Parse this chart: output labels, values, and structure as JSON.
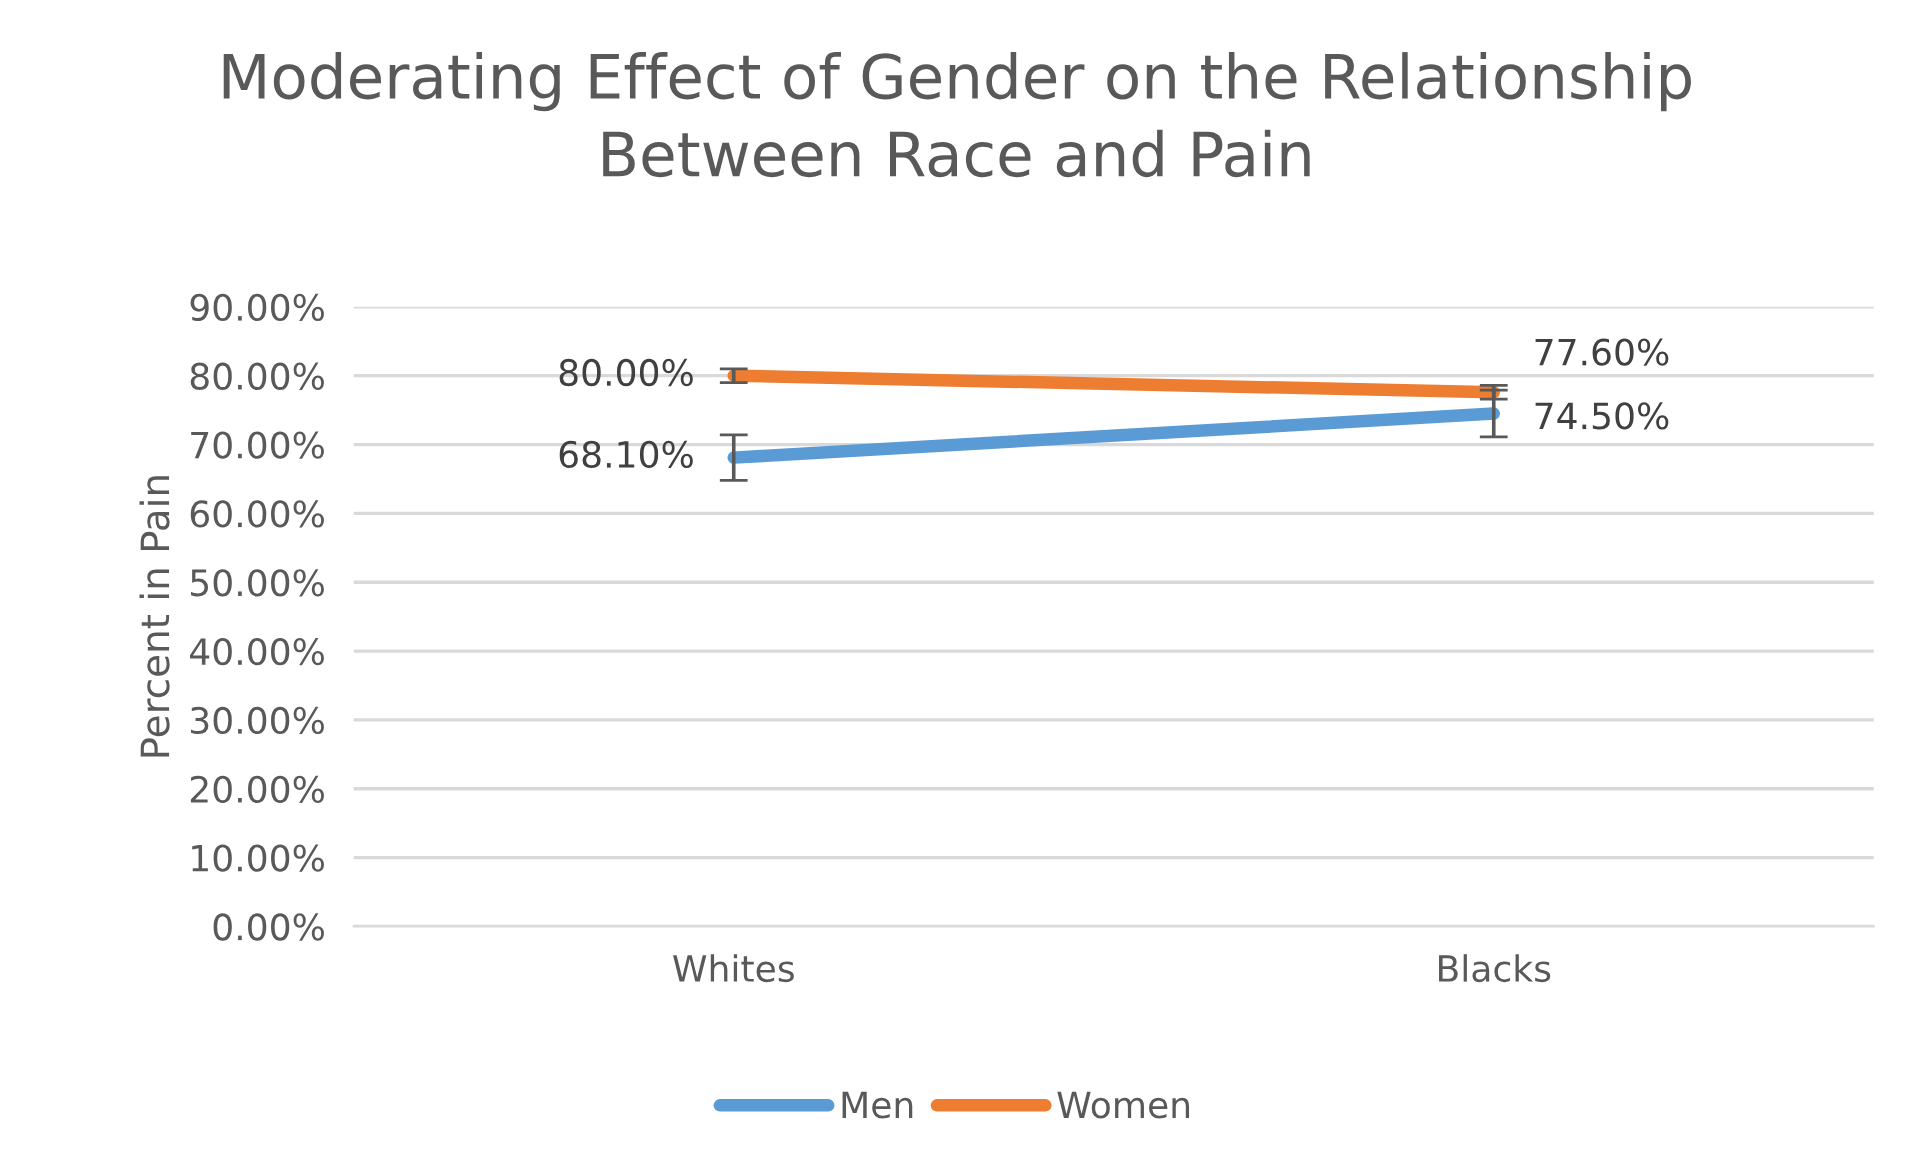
{
  "chart_data": {
    "type": "line",
    "title": "Moderating Effect of Gender on the Relationship\nBetween Race and Pain",
    "ylabel": "Percent in Pain",
    "categories": [
      "Whites",
      "Blacks"
    ],
    "series": [
      {
        "name": "Men",
        "color": "#5b9bd5",
        "values": [
          68.1,
          74.5
        ],
        "errors": [
          3.3,
          3.4
        ],
        "value_labels": [
          "68.10%",
          "74.50%"
        ]
      },
      {
        "name": "Women",
        "color": "#ed7d31",
        "values": [
          80.0,
          77.6
        ],
        "errors": [
          1,
          1
        ],
        "value_labels": [
          "80.00%",
          "77.60%"
        ]
      }
    ],
    "ylim": [
      0,
      90
    ],
    "yticks": [
      {
        "value": 0,
        "label": "0.00%"
      },
      {
        "value": 10,
        "label": "10.00%"
      },
      {
        "value": 20,
        "label": "20.00%"
      },
      {
        "value": 30,
        "label": "30.00%"
      },
      {
        "value": 40,
        "label": "40.00%"
      },
      {
        "value": 50,
        "label": "50.00%"
      },
      {
        "value": 60,
        "label": "60.00%"
      },
      {
        "value": 70,
        "label": "70.00%"
      },
      {
        "value": 80,
        "label": "80.00%"
      },
      {
        "value": 90,
        "label": "90.00%"
      }
    ],
    "grid": "y",
    "legend": "bottom",
    "marker": "none",
    "line_style": "solid"
  }
}
